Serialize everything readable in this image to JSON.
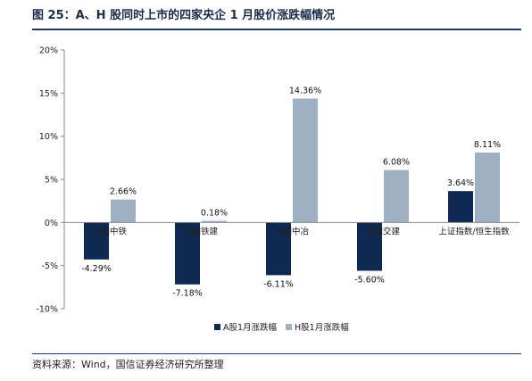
{
  "title": "图 25：A、H 股同时上市的四家央企 1 月股价涨跌幅情况",
  "source": "资料来源：Wind，国信证券经济研究所整理",
  "colors": {
    "series_a": "#0e2a52",
    "series_h": "#9fb0c2",
    "axis": "#888888",
    "rule": "#1f3864"
  },
  "chart_data": {
    "type": "bar",
    "categories": [
      "中国中铁",
      "中国铁建",
      "中国中冶",
      "中国交建",
      "上证指数/恒生指数"
    ],
    "series": [
      {
        "name": "A股1月涨跌幅",
        "values": [
          -4.29,
          -7.18,
          -6.11,
          -5.6,
          3.64
        ],
        "labels": [
          "-4.29%",
          "-7.18%",
          "-6.11%",
          "-5.60%",
          "3.64%"
        ]
      },
      {
        "name": "H股1月涨跌幅",
        "values": [
          2.66,
          0.18,
          14.36,
          6.08,
          8.11
        ],
        "labels": [
          "2.66%",
          "0.18%",
          "14.36%",
          "6.08%",
          "8.11%"
        ]
      }
    ],
    "ylim": [
      -10,
      20
    ],
    "yticks": [
      -10,
      -5,
      0,
      5,
      10,
      15,
      20
    ],
    "ytick_labels": [
      "-10%",
      "-5%",
      "0%",
      "5%",
      "10%",
      "15%",
      "20%"
    ],
    "grid": false,
    "legend_position": "bottom-center"
  }
}
